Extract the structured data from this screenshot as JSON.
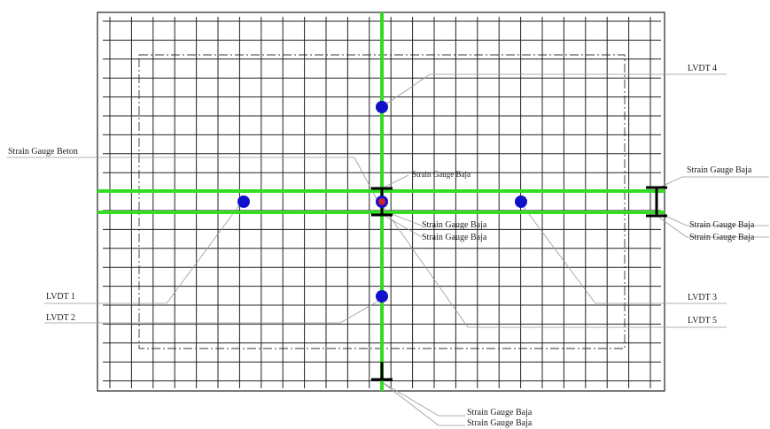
{
  "labels": {
    "lvdt4": "LVDT 4",
    "sg_beton": "Strain Gauge Beton",
    "sg_baja_center_top": "Strain Gauge Baja",
    "sg_baja_right_top": "Strain Gauge Baja",
    "sg_baja_center_mid1": "Strain Gauge Baja",
    "sg_baja_center_mid2": "Strain Gauge Baja",
    "sg_baja_right_mid1": "Strain Gauge Baja",
    "sg_baja_right_mid2": "Strain Gauge Baja",
    "lvdt1": "LVDT 1",
    "lvdt2": "LVDT 2",
    "lvdt3": "LVDT 3",
    "lvdt5": "LVDT 5",
    "sg_baja_bottom1": "Strain Gauge Baja",
    "sg_baja_bottom2": "Strain Gauge Baja"
  },
  "colors": {
    "rebar_highlight": "#33dd22",
    "lvdt_marker": "#1111cc",
    "strain_gauge_concrete": "#cc2233",
    "grid": "#222222",
    "leader": "#999999"
  }
}
